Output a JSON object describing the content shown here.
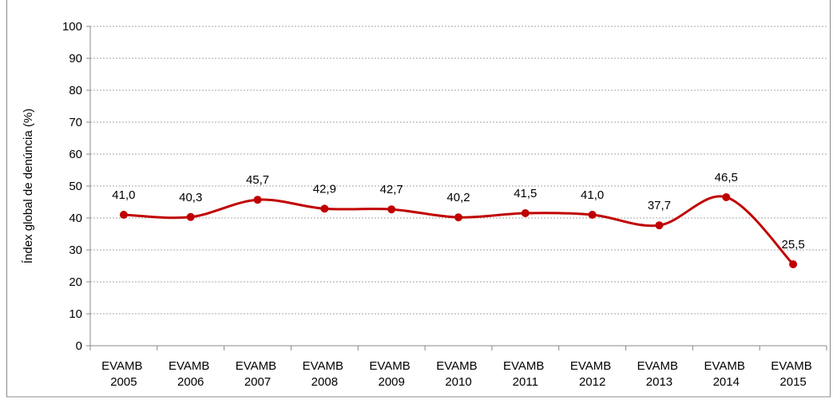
{
  "chart_data": {
    "type": "line",
    "y_label": "Índex global de denúncia (%)",
    "categories": [
      "EVAMB 2005",
      "EVAMB 2006",
      "EVAMB 2007",
      "EVAMB 2008",
      "EVAMB 2009",
      "EVAMB 2010",
      "EVAMB 2011",
      "EVAMB 2012",
      "EVAMB 2013",
      "EVAMB 2014",
      "EVAMB 2015"
    ],
    "series": [
      {
        "color": "#c00000",
        "values": [
          41.0,
          40.3,
          45.7,
          42.9,
          42.7,
          40.2,
          41.5,
          41.0,
          37.7,
          46.5,
          25.5
        ],
        "value_labels": [
          "41,0",
          "40,3",
          "45,7",
          "42,9",
          "42,7",
          "40,2",
          "41,5",
          "41,0",
          "37,7",
          "46,5",
          "25,5"
        ]
      }
    ],
    "ylim": [
      0,
      100
    ],
    "yticks": [
      0,
      10,
      20,
      30,
      40,
      50,
      60,
      70,
      80,
      90,
      100
    ],
    "grid": true
  }
}
